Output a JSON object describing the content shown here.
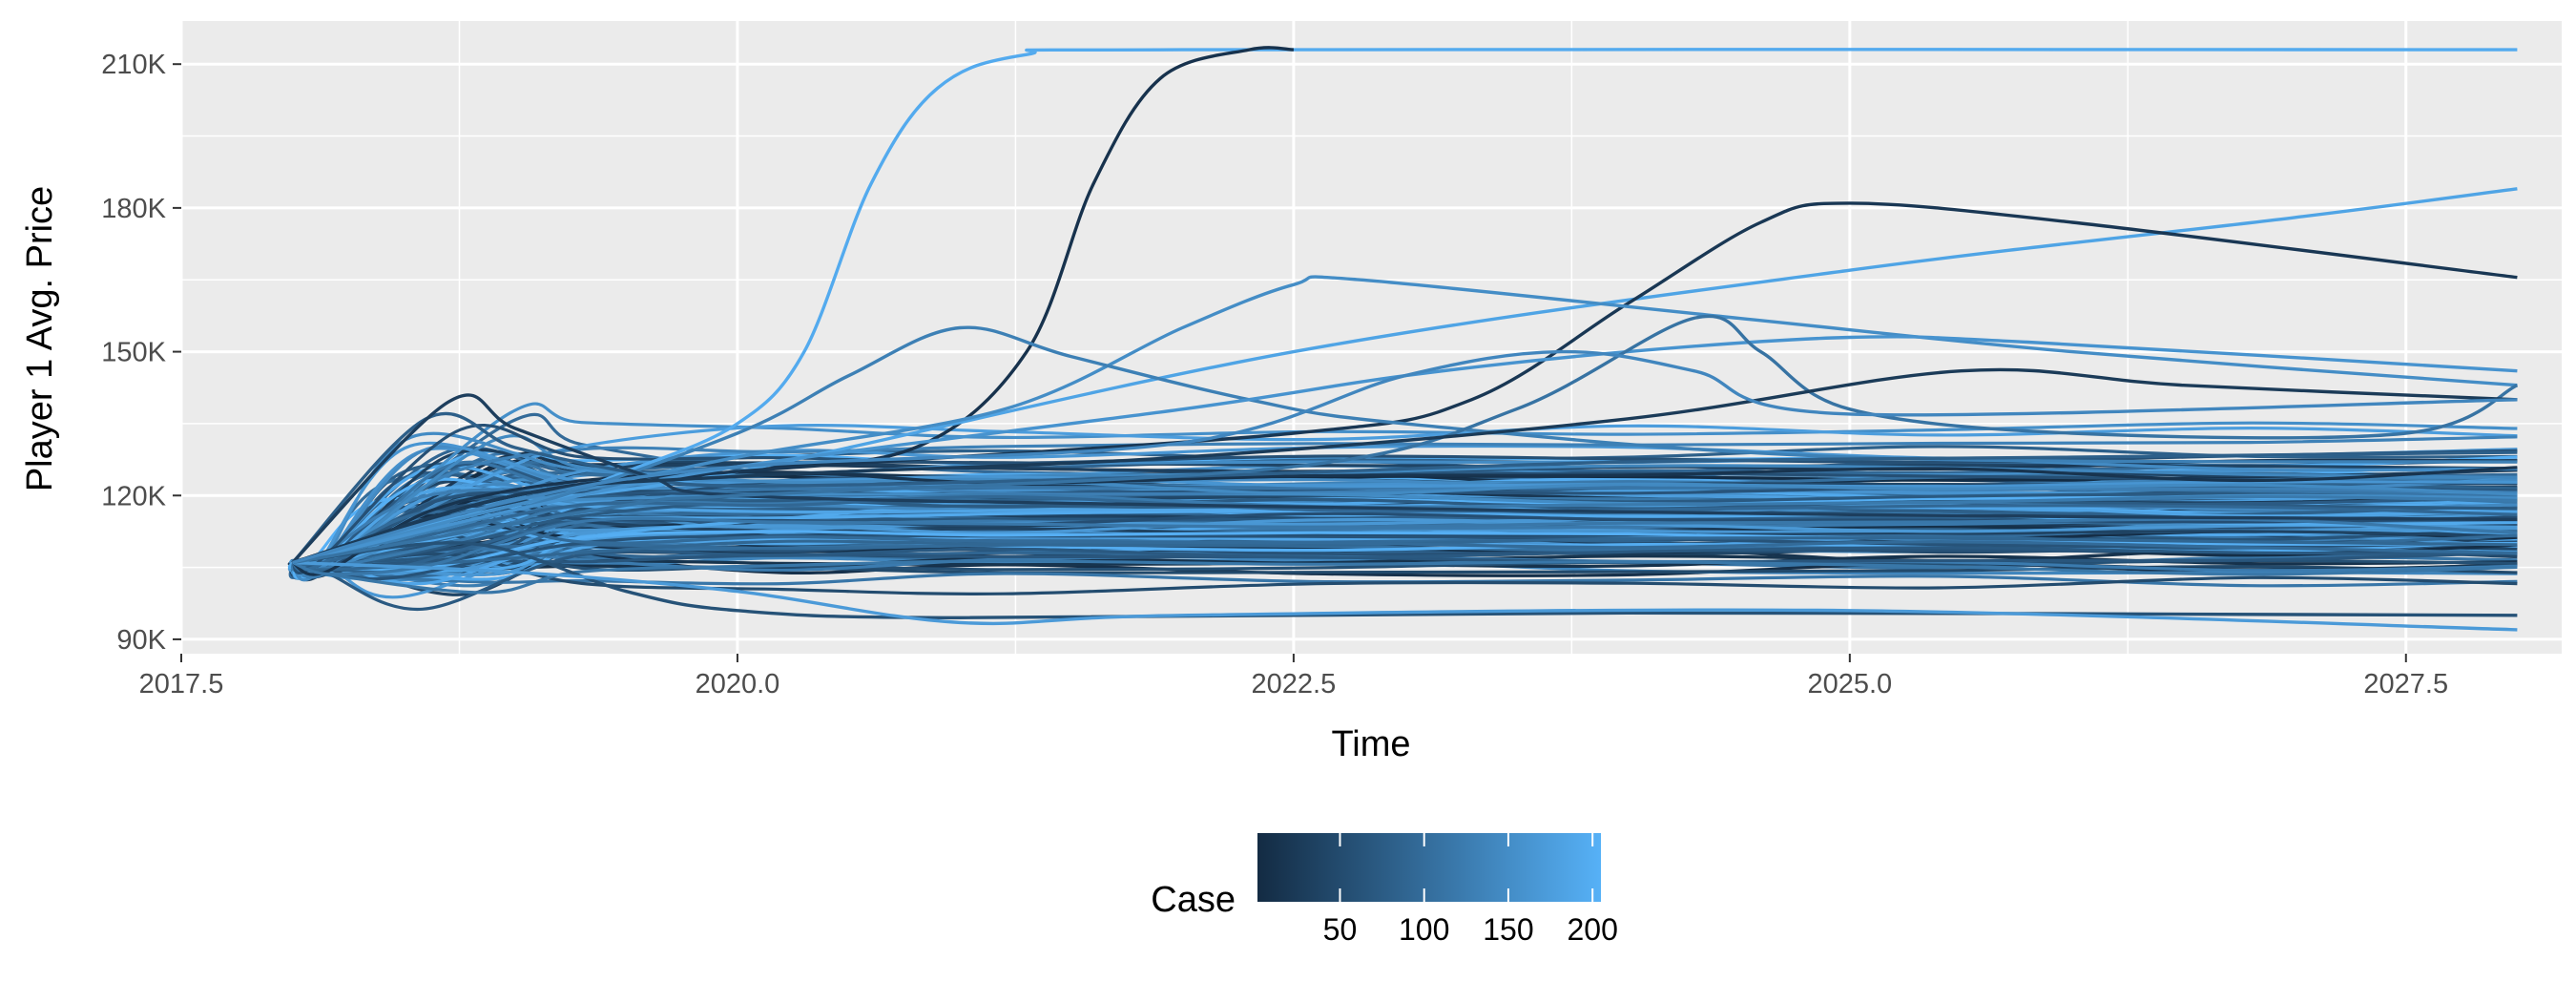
{
  "chart_data": {
    "type": "line",
    "title": "",
    "xlabel": "Time",
    "ylabel": "Player 1 Avg. Price",
    "xlim": [
      2017.5,
      2028.2
    ],
    "ylim": [
      87000,
      219000
    ],
    "x_ticks": [
      2017.5,
      2020.0,
      2022.5,
      2025.0,
      2027.5
    ],
    "x_tick_labels": [
      "2017.5",
      "2020.0",
      "2022.5",
      "2025.0",
      "2027.5"
    ],
    "y_ticks": [
      90000,
      120000,
      150000,
      180000,
      210000
    ],
    "y_tick_labels": [
      "90K",
      "120K",
      "150K",
      "180K",
      "210K"
    ],
    "grid": true,
    "panel_background": "#ebebeb",
    "legend": {
      "title": "Case",
      "type": "colorbar",
      "position": "bottom",
      "range": [
        1,
        205
      ],
      "ticks": [
        50,
        100,
        150,
        200
      ],
      "tick_labels": [
        "50",
        "100",
        "150",
        "200"
      ],
      "color_low": "#132b43",
      "color_high": "#56b1f7"
    },
    "x_start": 2018.0,
    "x_end": 2028.0,
    "start_value": 106000,
    "series_count": 205,
    "highlighted_series": [
      {
        "case": 195,
        "points": [
          [
            2018.0,
            106000
          ],
          [
            2019.0,
            117000
          ],
          [
            2019.5,
            125000
          ],
          [
            2020.0,
            135000
          ],
          [
            2020.3,
            150000
          ],
          [
            2020.6,
            185000
          ],
          [
            2020.9,
            205000
          ],
          [
            2021.3,
            212000
          ],
          [
            2022.0,
            213000
          ],
          [
            2028.0,
            213000
          ]
        ]
      },
      {
        "case": 12,
        "points": [
          [
            2018.0,
            106000
          ],
          [
            2019.0,
            120000
          ],
          [
            2020.0,
            125000
          ],
          [
            2020.8,
            130000
          ],
          [
            2021.3,
            150000
          ],
          [
            2021.6,
            185000
          ],
          [
            2021.9,
            207000
          ],
          [
            2022.3,
            213000
          ],
          [
            2022.5,
            213000
          ]
        ]
      },
      {
        "case": 185,
        "points": [
          [
            2018.0,
            106000
          ],
          [
            2019.0,
            118000
          ],
          [
            2020.0,
            125000
          ],
          [
            2022.5,
            150000
          ],
          [
            2025.0,
            167000
          ],
          [
            2027.0,
            178000
          ],
          [
            2028.0,
            184000
          ]
        ]
      },
      {
        "case": 20,
        "points": [
          [
            2018.0,
            106000
          ],
          [
            2019.0,
            120000
          ],
          [
            2020.0,
            125000
          ],
          [
            2022.5,
            133000
          ],
          [
            2023.3,
            140000
          ],
          [
            2024.0,
            160000
          ],
          [
            2024.6,
            177000
          ],
          [
            2025.0,
            181000
          ],
          [
            2026.0,
            177000
          ],
          [
            2028.0,
            165500
          ]
        ]
      },
      {
        "case": 150,
        "points": [
          [
            2018.0,
            106000
          ],
          [
            2019.0,
            118000
          ],
          [
            2020.0,
            128000
          ],
          [
            2021.2,
            138000
          ],
          [
            2022.0,
            155000
          ],
          [
            2022.5,
            164000
          ],
          [
            2022.8,
            165000
          ],
          [
            2024.5,
            157000
          ],
          [
            2026.0,
            150000
          ],
          [
            2028.0,
            143000
          ]
        ]
      },
      {
        "case": 130,
        "points": [
          [
            2018.0,
            106000
          ],
          [
            2019.0,
            117000
          ],
          [
            2020.0,
            133000
          ],
          [
            2020.5,
            145000
          ],
          [
            2021.0,
            155000
          ],
          [
            2021.5,
            149000
          ],
          [
            2022.3,
            140000
          ],
          [
            2023.0,
            135000
          ],
          [
            2025.0,
            128000
          ],
          [
            2028.0,
            127000
          ]
        ]
      },
      {
        "case": 160,
        "points": [
          [
            2018.0,
            106000
          ],
          [
            2019.0,
            117000
          ],
          [
            2020.0,
            126000
          ],
          [
            2022.0,
            138000
          ],
          [
            2023.0,
            145000
          ],
          [
            2024.0,
            150000
          ],
          [
            2025.0,
            153000
          ],
          [
            2025.8,
            152000
          ],
          [
            2028.0,
            146000
          ]
        ]
      },
      {
        "case": 80,
        "points": [
          [
            2018.0,
            106000
          ],
          [
            2018.6,
            136000
          ],
          [
            2019.0,
            130000
          ],
          [
            2019.5,
            125000
          ],
          [
            2020.0,
            122000
          ],
          [
            2022.0,
            124000
          ],
          [
            2024.0,
            127000
          ],
          [
            2026.0,
            128000
          ],
          [
            2028.0,
            129000
          ]
        ]
      },
      {
        "case": 30,
        "points": [
          [
            2018.0,
            106000
          ],
          [
            2018.7,
            139500
          ],
          [
            2019.0,
            134000
          ],
          [
            2019.6,
            124000
          ],
          [
            2020.0,
            120000
          ],
          [
            2022.0,
            118000
          ],
          [
            2025.0,
            116000
          ],
          [
            2028.0,
            115000
          ]
        ]
      },
      {
        "case": 60,
        "points": [
          [
            2018.0,
            106000
          ],
          [
            2018.8,
            110000
          ],
          [
            2019.5,
            100000
          ],
          [
            2020.0,
            96000
          ],
          [
            2021.0,
            94500
          ],
          [
            2024.0,
            95500
          ],
          [
            2028.0,
            95000
          ]
        ]
      },
      {
        "case": 170,
        "points": [
          [
            2018.0,
            106000
          ],
          [
            2019.0,
            104000
          ],
          [
            2020.0,
            100000
          ],
          [
            2021.0,
            93500
          ],
          [
            2022.0,
            95000
          ],
          [
            2025.0,
            96000
          ],
          [
            2028.0,
            92000
          ]
        ]
      },
      {
        "case": 110,
        "points": [
          [
            2018.0,
            106000
          ],
          [
            2019.5,
            118000
          ],
          [
            2020.0,
            120000
          ],
          [
            2022.5,
            126000
          ],
          [
            2023.5,
            138000
          ],
          [
            2024.3,
            157000
          ],
          [
            2024.6,
            150000
          ],
          [
            2025.0,
            138000
          ],
          [
            2026.0,
            133000
          ],
          [
            2027.5,
            133000
          ],
          [
            2028.0,
            143000
          ]
        ]
      },
      {
        "case": 25,
        "points": [
          [
            2018.0,
            106000
          ],
          [
            2019.0,
            120000
          ],
          [
            2020.0,
            124000
          ],
          [
            2022.0,
            128000
          ],
          [
            2024.0,
            136000
          ],
          [
            2025.5,
            146000
          ],
          [
            2026.5,
            143000
          ],
          [
            2028.0,
            140000
          ]
        ]
      },
      {
        "case": 140,
        "points": [
          [
            2018.0,
            106000
          ],
          [
            2019.0,
            119000
          ],
          [
            2020.0,
            126000
          ],
          [
            2022.0,
            131000
          ],
          [
            2023.0,
            145000
          ],
          [
            2023.7,
            150000
          ],
          [
            2024.3,
            146000
          ],
          [
            2025.0,
            137000
          ],
          [
            2028.0,
            140000
          ]
        ]
      }
    ]
  }
}
